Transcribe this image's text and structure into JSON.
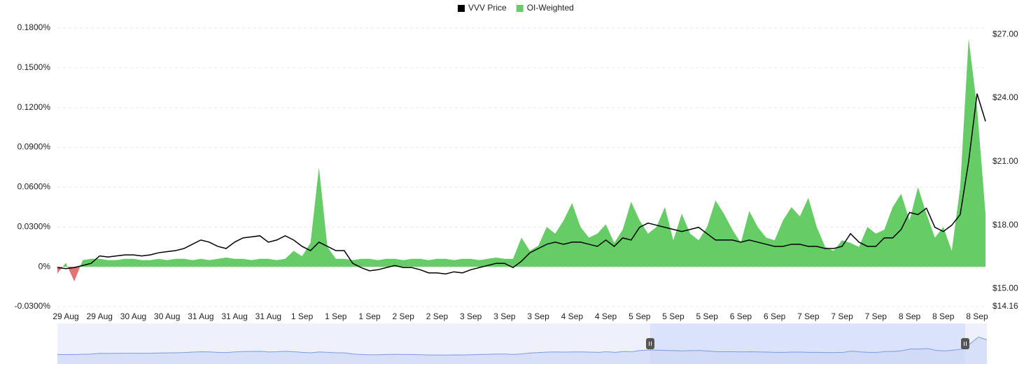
{
  "chart_data": {
    "type": "line-area",
    "categories": [
      null,
      "29 Aug",
      null,
      null,
      null,
      "29 Aug",
      null,
      null,
      null,
      "30 Aug",
      null,
      null,
      null,
      "30 Aug",
      null,
      null,
      null,
      "31 Aug",
      null,
      null,
      null,
      "31 Aug",
      null,
      null,
      null,
      "31 Aug",
      null,
      null,
      null,
      "1 Sep",
      null,
      null,
      null,
      "1 Sep",
      null,
      null,
      null,
      "1 Sep",
      null,
      null,
      null,
      "2 Sep",
      null,
      null,
      null,
      "2 Sep",
      null,
      null,
      null,
      "3 Sep",
      null,
      null,
      null,
      "3 Sep",
      null,
      null,
      null,
      "3 Sep",
      null,
      null,
      null,
      "4 Sep",
      null,
      null,
      null,
      "4 Sep",
      null,
      null,
      null,
      "5 Sep",
      null,
      null,
      null,
      "5 Sep",
      null,
      null,
      null,
      "5 Sep",
      null,
      null,
      null,
      "6 Sep",
      null,
      null,
      null,
      "6 Sep",
      null,
      null,
      null,
      "7 Sep",
      null,
      null,
      null,
      "7 Sep",
      null,
      null,
      null,
      "7 Sep",
      null,
      null,
      null,
      "8 Sep",
      null,
      null,
      null,
      "8 Sep",
      null,
      null,
      null,
      "8 Sep",
      null
    ],
    "series": [
      {
        "name": "VVV Price",
        "color": "#000000",
        "axis": "y2",
        "kind": "line",
        "values": [
          16.0,
          15.95,
          16.0,
          16.1,
          16.2,
          16.55,
          16.5,
          16.55,
          16.6,
          16.6,
          16.55,
          16.6,
          16.7,
          16.75,
          16.8,
          16.9,
          17.1,
          17.3,
          17.2,
          17.0,
          16.9,
          17.2,
          17.4,
          17.45,
          17.5,
          17.2,
          17.3,
          17.5,
          17.3,
          17.0,
          16.8,
          17.2,
          17.0,
          16.8,
          16.8,
          16.2,
          16.0,
          15.85,
          15.9,
          16.0,
          16.1,
          16.0,
          16.0,
          15.9,
          15.75,
          15.75,
          15.7,
          15.8,
          15.75,
          15.9,
          16.0,
          16.1,
          16.2,
          16.2,
          16.0,
          16.3,
          16.7,
          16.9,
          17.1,
          17.2,
          17.1,
          17.2,
          17.2,
          17.1,
          17.0,
          17.3,
          17.0,
          17.4,
          17.3,
          17.9,
          18.1,
          18.0,
          17.9,
          17.8,
          17.7,
          17.8,
          17.9,
          17.6,
          17.3,
          17.3,
          17.3,
          17.2,
          17.3,
          17.2,
          17.1,
          17.0,
          17.0,
          17.1,
          17.1,
          17.0,
          17.0,
          16.9,
          16.9,
          17.0,
          17.6,
          17.2,
          17.0,
          17.0,
          17.4,
          17.4,
          17.8,
          18.6,
          18.5,
          18.8,
          17.9,
          17.7,
          18.0,
          18.5,
          21.0,
          24.2,
          22.9
        ]
      },
      {
        "name": "OI-Weighted",
        "color": "#66cc66",
        "negative_color": "#e57373",
        "kind": "area",
        "values": [
          -0.005,
          0.003,
          -0.011,
          0.005,
          0.006,
          0.006,
          0.005,
          0.005,
          0.006,
          0.006,
          0.005,
          0.005,
          0.006,
          0.005,
          0.006,
          0.006,
          0.005,
          0.006,
          0.005,
          0.006,
          0.007,
          0.006,
          0.006,
          0.005,
          0.006,
          0.006,
          0.005,
          0.006,
          0.012,
          0.008,
          0.018,
          0.075,
          0.015,
          0.006,
          0.006,
          0.005,
          0.006,
          0.006,
          0.005,
          0.006,
          0.006,
          0.005,
          0.006,
          0.006,
          0.005,
          0.006,
          0.006,
          0.005,
          0.006,
          0.006,
          0.005,
          0.006,
          0.007,
          0.006,
          0.006,
          0.022,
          0.012,
          0.016,
          0.03,
          0.025,
          0.035,
          0.048,
          0.03,
          0.022,
          0.025,
          0.032,
          0.018,
          0.028,
          0.049,
          0.035,
          0.025,
          0.03,
          0.045,
          0.02,
          0.04,
          0.025,
          0.02,
          0.03,
          0.05,
          0.04,
          0.028,
          0.018,
          0.042,
          0.03,
          0.022,
          0.02,
          0.035,
          0.045,
          0.038,
          0.052,
          0.03,
          0.015,
          0.012,
          0.02,
          0.018,
          0.015,
          0.03,
          0.025,
          0.028,
          0.045,
          0.055,
          0.035,
          0.06,
          0.04,
          0.022,
          0.03,
          0.012,
          0.06,
          0.172,
          0.12,
          0.04
        ]
      }
    ],
    "ylim": [
      -0.03,
      0.18
    ],
    "yticks": [
      {
        "value": -0.03,
        "label": "-0.0300%"
      },
      {
        "value": 0,
        "label": "0%"
      },
      {
        "value": 0.03,
        "label": "0.0300%"
      },
      {
        "value": 0.06,
        "label": "0.0600%"
      },
      {
        "value": 0.09,
        "label": "0.0900%"
      },
      {
        "value": 0.12,
        "label": "0.1200%"
      },
      {
        "value": 0.15,
        "label": "0.1500%"
      },
      {
        "value": 0.18,
        "label": "0.1800%"
      }
    ],
    "y2lim": [
      14.16,
      27.3
    ],
    "y2ticks": [
      {
        "value": 14.16,
        "label": "$14.16"
      },
      {
        "value": 15,
        "label": "$15.00"
      },
      {
        "value": 18,
        "label": "$18.00"
      },
      {
        "value": 21,
        "label": "$21.00"
      },
      {
        "value": 24,
        "label": "$24.00"
      },
      {
        "value": 27,
        "label": "$27.00"
      }
    ],
    "grid": true,
    "legend": "top",
    "navigator": true
  }
}
